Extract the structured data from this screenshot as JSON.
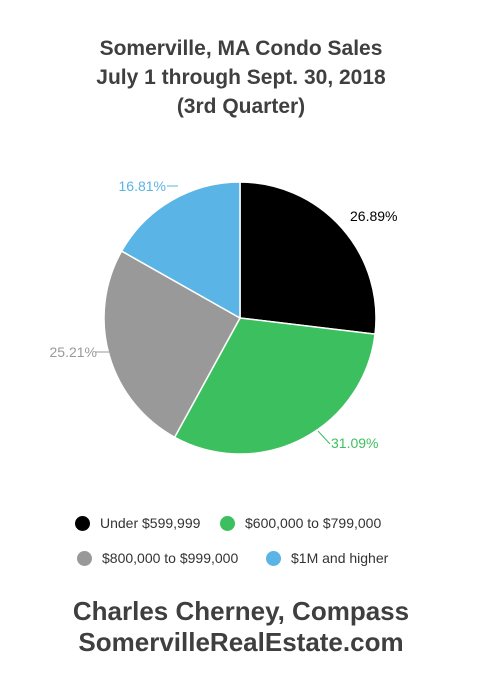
{
  "chart_data": {
    "type": "pie",
    "title_lines": [
      "Somerville, MA Condo Sales",
      "July 1 through Sept. 30, 2018",
      "(3rd Quarter)"
    ],
    "slices": [
      {
        "label": "Under $599,999",
        "value": 26.89,
        "display": "26.89%",
        "color": "#000000"
      },
      {
        "label": "$600,000 to $799,000",
        "value": 31.09,
        "display": "31.09%",
        "color": "#3cbf5f"
      },
      {
        "label": "$800,000 to $999,000",
        "value": 25.21,
        "display": "25.21%",
        "color": "#999999"
      },
      {
        "label": "$1M and higher",
        "value": 16.81,
        "display": "16.81%",
        "color": "#5ab4e5"
      }
    ],
    "legend_position": "bottom"
  },
  "footer": {
    "line1": "Charles Cherney, Compass",
    "line2": "SomervilleRealEstate.com"
  }
}
